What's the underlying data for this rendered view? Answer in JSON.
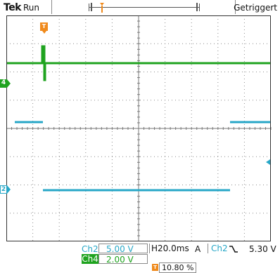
{
  "header": {
    "brand": "Tek",
    "run_state": "Run",
    "trigger_status": "Getriggert"
  },
  "channels": {
    "ch2": {
      "label": "Ch2",
      "marker": "2",
      "scale": "5.00 V",
      "color": "#27a7c7"
    },
    "ch4": {
      "label": "Ch4",
      "marker": "4",
      "scale": "2.00 V",
      "color": "#1fa31f"
    }
  },
  "timebase": {
    "label": "H",
    "value": "20.0ms"
  },
  "trigger": {
    "mode": "A",
    "source": "Ch2",
    "slope_icon": "falling-edge-icon",
    "level": "5.30 V",
    "marker": "T"
  },
  "horizontal_position": {
    "value": "10.80 %",
    "icon": "trigger-position-icon"
  },
  "colors": {
    "trigger": "#f08a1c",
    "grid": "#8c8c8c"
  }
}
